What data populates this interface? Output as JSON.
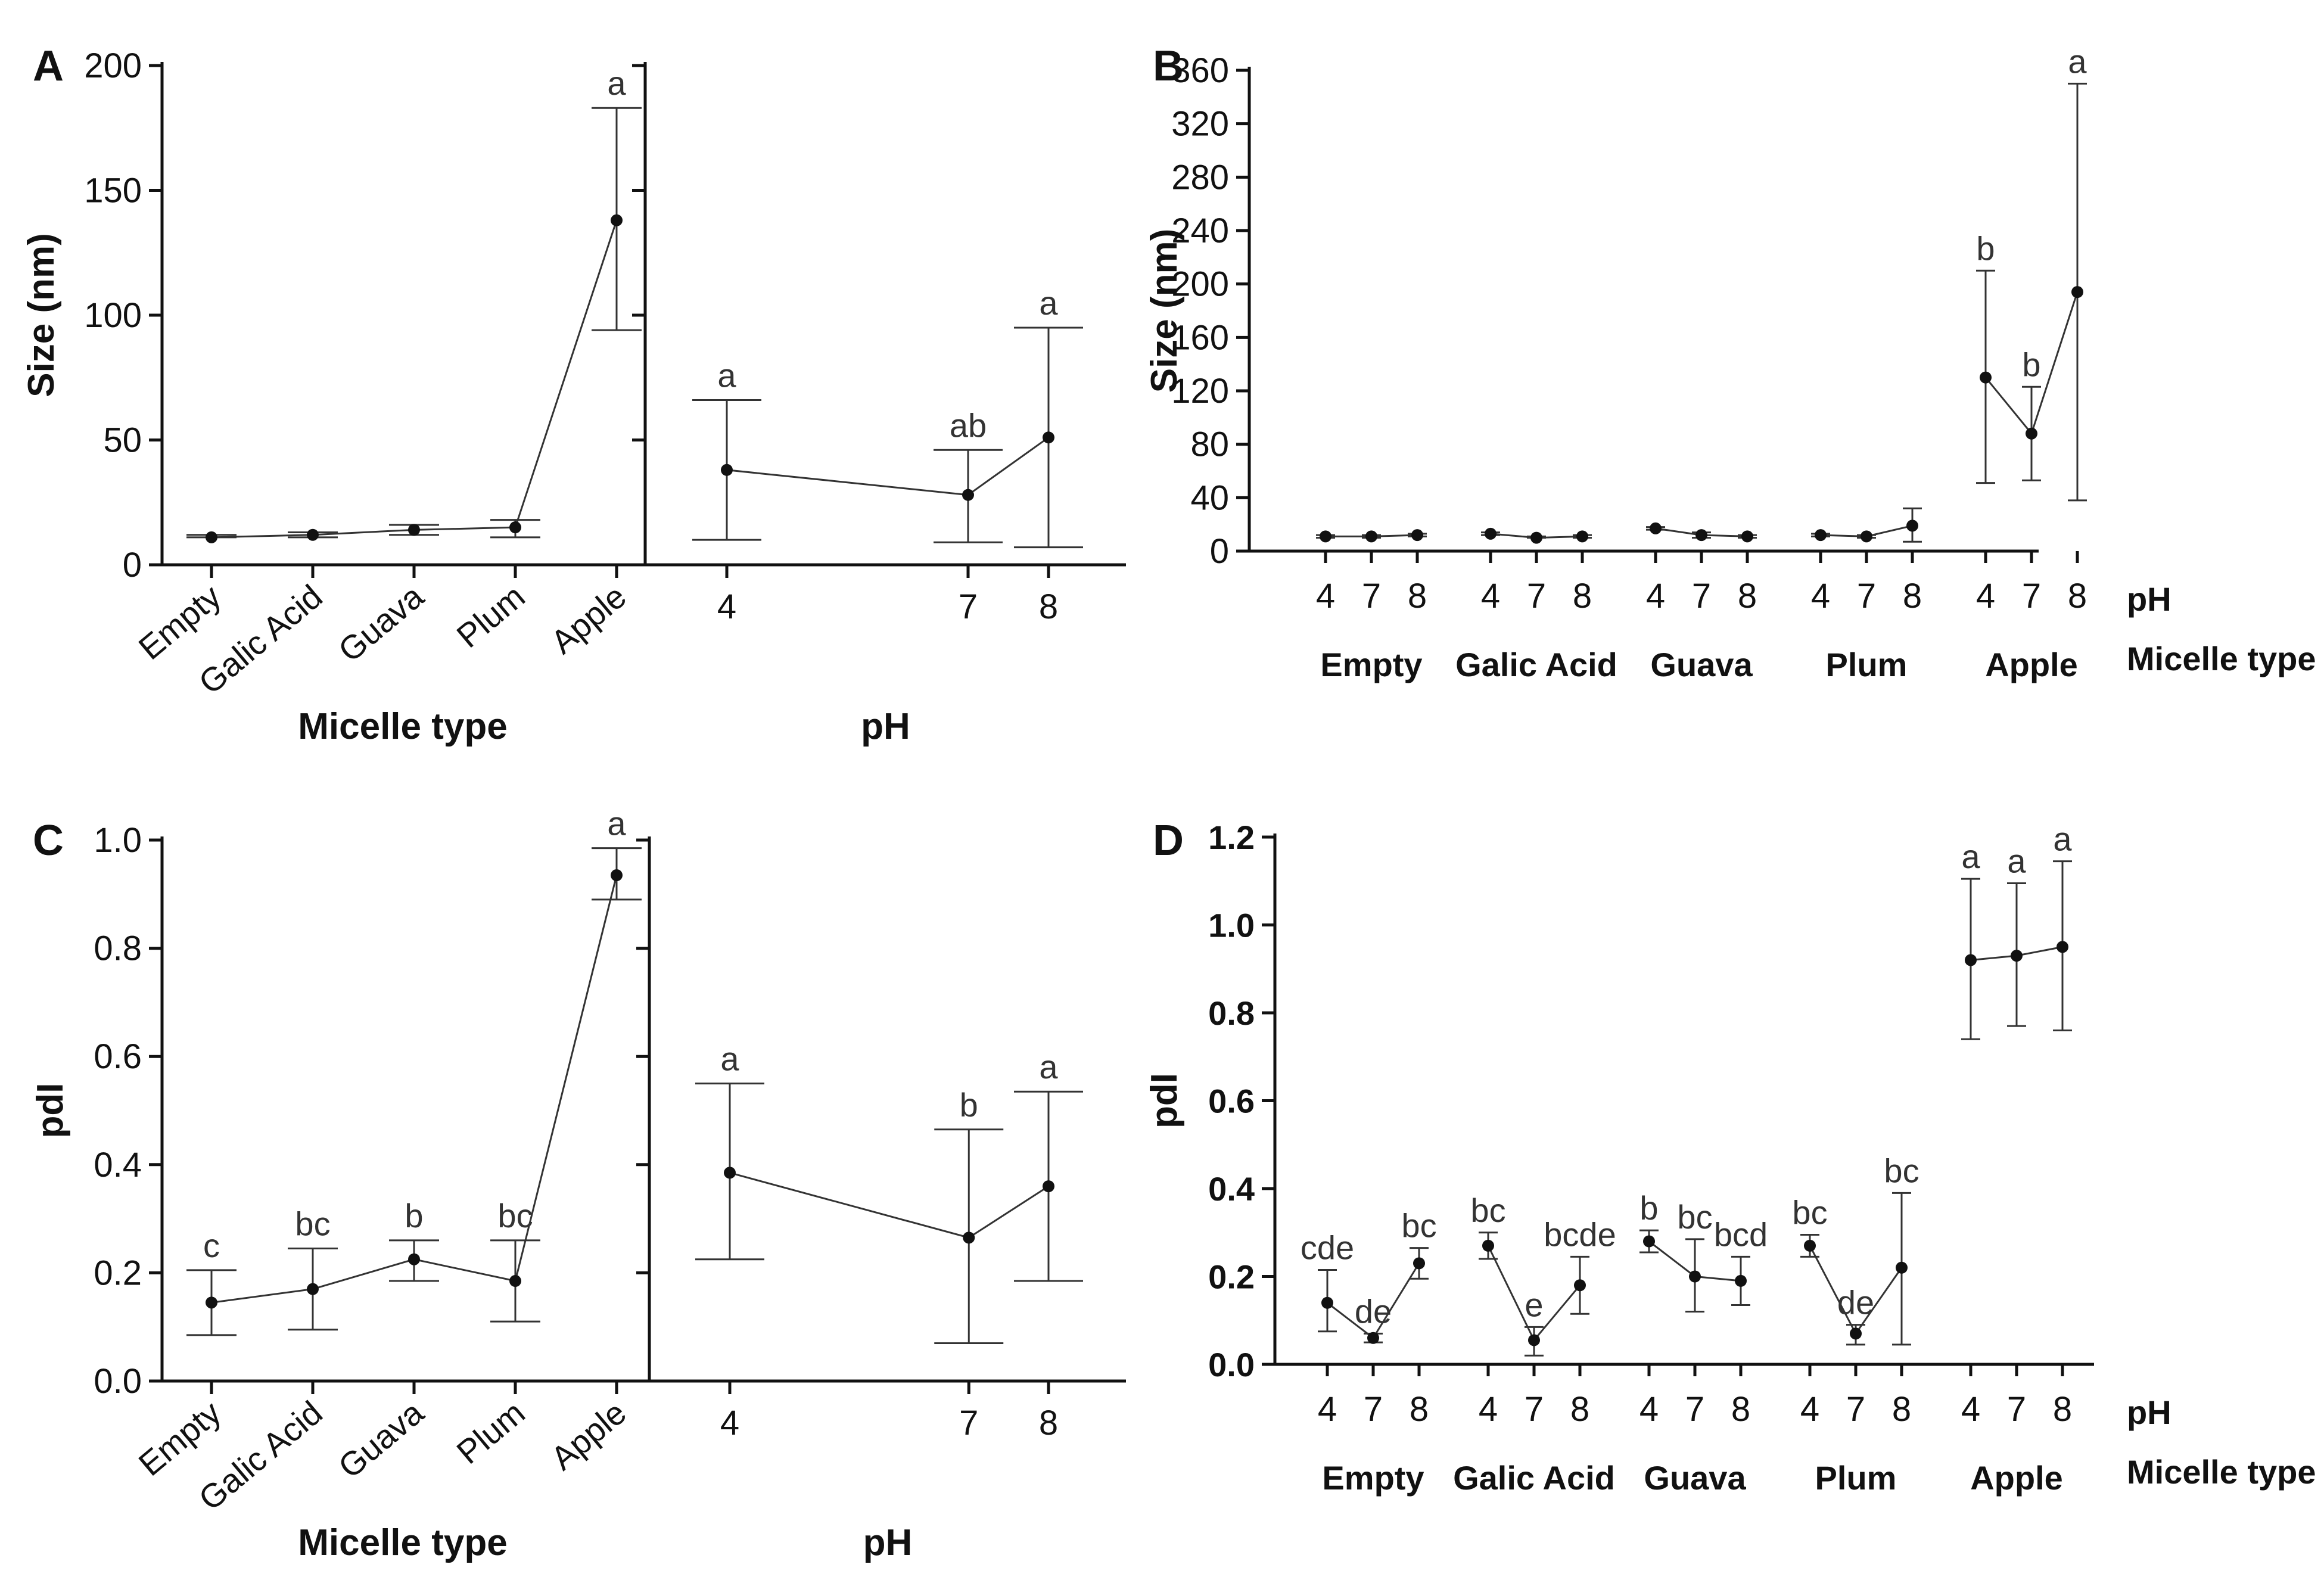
{
  "figure": {
    "panels": [
      {
        "id": "A",
        "letter": "A"
      },
      {
        "id": "B",
        "letter": "B"
      },
      {
        "id": "C",
        "letter": "C"
      },
      {
        "id": "D",
        "letter": "D"
      }
    ]
  },
  "chart_data": [
    {
      "panel": "A",
      "type": "line",
      "facets": [
        {
          "name": "Micelle type",
          "xlabel": "Micelle type",
          "categories": [
            "Empty",
            "Galic Acid",
            "Guava",
            "Plum",
            "Apple"
          ],
          "values": [
            11,
            12,
            14,
            15,
            138
          ],
          "err_low": [
            11,
            11,
            12,
            11,
            94
          ],
          "err_high": [
            12,
            13,
            16,
            18,
            183
          ],
          "sig": [
            "",
            "",
            "",
            "",
            "a"
          ]
        },
        {
          "name": "pH",
          "xlabel": "pH",
          "categories": [
            "4",
            "7",
            "8"
          ],
          "values": [
            38,
            28,
            51
          ],
          "err_low": [
            10,
            9,
            7
          ],
          "err_high": [
            66,
            46,
            95
          ],
          "sig": [
            "a",
            "ab",
            "a"
          ]
        }
      ],
      "ylabel": "Size (nm)",
      "ylim": [
        0,
        200
      ],
      "yticks": [
        0,
        50,
        100,
        150,
        200
      ]
    },
    {
      "panel": "B",
      "type": "line",
      "xlabel_inner": "pH",
      "xlabel_outer": "Micelle type",
      "ylabel": "Size (nm)",
      "ylim": [
        0,
        360
      ],
      "yticks": [
        0,
        40,
        80,
        120,
        160,
        200,
        240,
        280,
        320,
        360
      ],
      "ph_levels": [
        "4",
        "7",
        "8"
      ],
      "groups": [
        {
          "name": "Empty",
          "values": [
            11,
            11,
            12
          ],
          "err_low": [
            10,
            10,
            11
          ],
          "err_high": [
            12,
            12,
            13
          ],
          "sig": [
            "",
            "",
            ""
          ]
        },
        {
          "name": "Galic Acid",
          "values": [
            13,
            10,
            11
          ],
          "err_low": [
            12,
            10,
            10
          ],
          "err_high": [
            14,
            11,
            12
          ],
          "sig": [
            "",
            "",
            ""
          ]
        },
        {
          "name": "Guava",
          "values": [
            17,
            12,
            11
          ],
          "err_low": [
            16,
            10,
            10
          ],
          "err_high": [
            18,
            14,
            12
          ],
          "sig": [
            "",
            "",
            ""
          ]
        },
        {
          "name": "Plum",
          "values": [
            12,
            11,
            19
          ],
          "err_low": [
            11,
            10,
            7
          ],
          "err_high": [
            13,
            12,
            32
          ],
          "sig": [
            "",
            "",
            ""
          ]
        },
        {
          "name": "Apple",
          "values": [
            130,
            88,
            194
          ],
          "err_low": [
            51,
            53,
            38
          ],
          "err_high": [
            210,
            123,
            350
          ],
          "sig": [
            "b",
            "b",
            "a"
          ]
        }
      ]
    },
    {
      "panel": "C",
      "type": "line",
      "facets": [
        {
          "name": "Micelle type",
          "xlabel": "Micelle type",
          "categories": [
            "Empty",
            "Galic Acid",
            "Guava",
            "Plum",
            "Apple"
          ],
          "values": [
            0.145,
            0.17,
            0.225,
            0.185,
            0.935
          ],
          "err_low": [
            0.085,
            0.095,
            0.185,
            0.11,
            0.89
          ],
          "err_high": [
            0.205,
            0.245,
            0.26,
            0.26,
            0.985
          ],
          "sig": [
            "c",
            "bc",
            "b",
            "bc",
            "a"
          ]
        },
        {
          "name": "pH",
          "xlabel": "pH",
          "categories": [
            "4",
            "7",
            "8"
          ],
          "values": [
            0.385,
            0.265,
            0.36
          ],
          "err_low": [
            0.225,
            0.07,
            0.185
          ],
          "err_high": [
            0.55,
            0.465,
            0.535
          ],
          "sig": [
            "a",
            "b",
            "a"
          ]
        }
      ],
      "ylabel": "pdI",
      "ylim": [
        0,
        1.0
      ],
      "yticks": [
        0.0,
        0.2,
        0.4,
        0.6,
        0.8,
        1.0
      ],
      "ytick_labels": [
        "0.0",
        "0.2",
        "0.4",
        "0.6",
        "0.8",
        "1.0"
      ]
    },
    {
      "panel": "D",
      "type": "line",
      "xlabel_inner": "pH",
      "xlabel_outer": "Micelle type",
      "ylabel": "pdI",
      "ylim": [
        0,
        1.2
      ],
      "yticks": [
        0.0,
        0.2,
        0.4,
        0.6,
        0.8,
        1.0,
        1.2
      ],
      "ytick_labels": [
        "0.0",
        "0.2",
        "0.4",
        "0.6",
        "0.8",
        "1.0",
        "1.2"
      ],
      "ph_levels": [
        "4",
        "7",
        "8"
      ],
      "groups": [
        {
          "name": "Empty",
          "values": [
            0.14,
            0.06,
            0.23
          ],
          "err_low": [
            0.075,
            0.05,
            0.195
          ],
          "err_high": [
            0.215,
            0.07,
            0.265
          ],
          "sig": [
            "cde",
            "de",
            "bc"
          ]
        },
        {
          "name": "Galic Acid",
          "values": [
            0.27,
            0.055,
            0.18
          ],
          "err_low": [
            0.24,
            0.02,
            0.115
          ],
          "err_high": [
            0.3,
            0.085,
            0.245
          ],
          "sig": [
            "bc",
            "e",
            "bcde"
          ]
        },
        {
          "name": "Guava",
          "values": [
            0.28,
            0.2,
            0.19
          ],
          "err_low": [
            0.255,
            0.12,
            0.135
          ],
          "err_high": [
            0.305,
            0.285,
            0.245
          ],
          "sig": [
            "b",
            "bc",
            "bcd"
          ]
        },
        {
          "name": "Plum",
          "values": [
            0.27,
            0.07,
            0.22
          ],
          "err_low": [
            0.245,
            0.045,
            0.045
          ],
          "err_high": [
            0.295,
            0.09,
            0.39
          ],
          "sig": [
            "bc",
            "de",
            "bc"
          ]
        },
        {
          "name": "Apple",
          "values": [
            0.92,
            0.93,
            0.95
          ],
          "err_low": [
            0.74,
            0.77,
            0.76
          ],
          "err_high": [
            1.105,
            1.095,
            1.145
          ],
          "sig": [
            "a",
            "a",
            "a"
          ]
        }
      ]
    }
  ]
}
